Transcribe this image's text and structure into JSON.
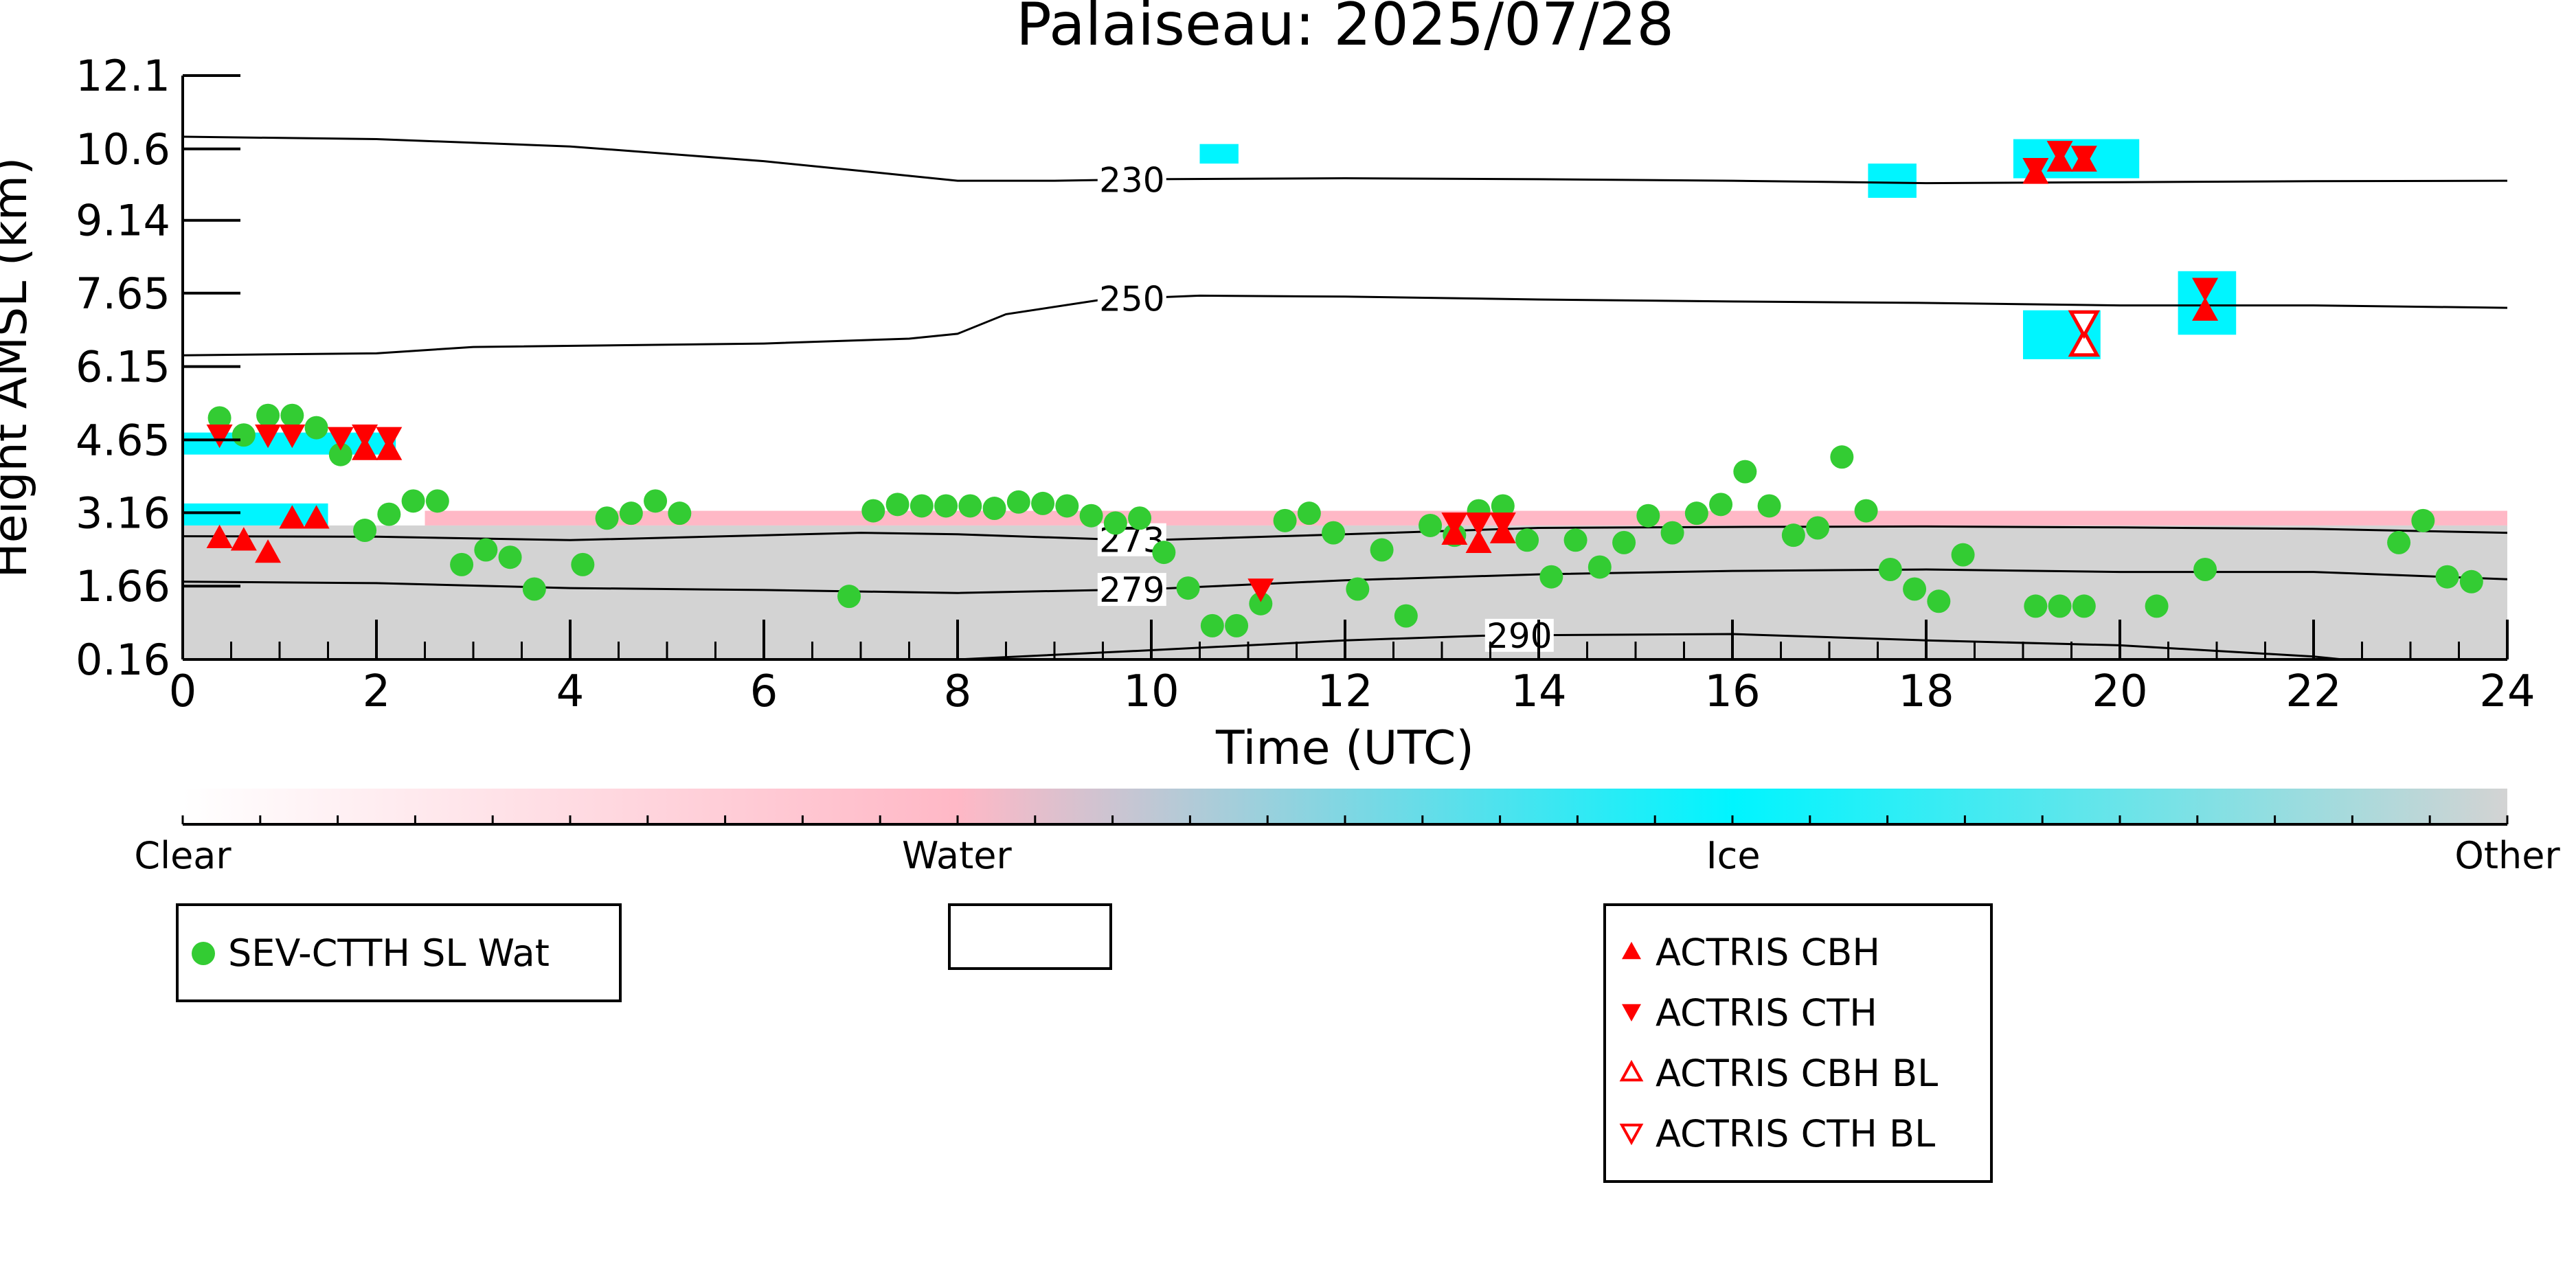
{
  "chart_data": {
    "type": "scatter",
    "title": "Palaiseau: 2025/07/28",
    "xlabel": "Time (UTC)",
    "ylabel": "Height AMSL (km)",
    "xlim": [
      0,
      24
    ],
    "ylim": [
      0.16,
      12.1
    ],
    "x_ticks": [
      "0",
      "2",
      "4",
      "6",
      "8",
      "10",
      "12",
      "14",
      "16",
      "18",
      "20",
      "22",
      "24"
    ],
    "y_ticks": [
      "0.16",
      "1.66",
      "3.16",
      "4.65",
      "6.15",
      "7.65",
      "9.14",
      "10.6",
      "12.1"
    ],
    "grid": false,
    "colors": {
      "sev": "#33cc33",
      "actris": "#ff0000",
      "ice": "#00f5ff",
      "water": "#ffb8c6",
      "other": "#d3d3d3"
    },
    "colorbar": {
      "labels": [
        "Clear",
        "Water",
        "Ice",
        "Other"
      ],
      "positions": [
        0,
        0.333,
        0.667,
        1
      ]
    },
    "legends": {
      "left": [
        "SEV-CTTH SL Wat"
      ],
      "right": [
        "ACTRIS CBH",
        "ACTRIS CTH",
        "ACTRIS CBH BL",
        "ACTRIS CTH BL"
      ]
    },
    "isotherms": [
      {
        "label": "230",
        "label_x": 9.8,
        "points": [
          [
            0,
            10.85
          ],
          [
            2,
            10.8
          ],
          [
            4,
            10.65
          ],
          [
            6,
            10.35
          ],
          [
            7,
            10.15
          ],
          [
            8,
            9.95
          ],
          [
            9,
            9.95
          ],
          [
            10,
            9.98
          ],
          [
            12,
            10.0
          ],
          [
            14,
            9.98
          ],
          [
            16,
            9.95
          ],
          [
            18,
            9.9
          ],
          [
            20,
            9.92
          ],
          [
            22,
            9.94
          ],
          [
            24,
            9.95
          ]
        ]
      },
      {
        "label": "250",
        "label_x": 9.8,
        "points": [
          [
            0,
            6.38
          ],
          [
            2,
            6.42
          ],
          [
            3,
            6.55
          ],
          [
            6,
            6.62
          ],
          [
            7.5,
            6.72
          ],
          [
            8,
            6.82
          ],
          [
            8.5,
            7.22
          ],
          [
            9.5,
            7.52
          ],
          [
            10.5,
            7.6
          ],
          [
            12,
            7.58
          ],
          [
            14,
            7.52
          ],
          [
            16,
            7.48
          ],
          [
            18,
            7.45
          ],
          [
            20,
            7.4
          ],
          [
            22,
            7.4
          ],
          [
            24,
            7.35
          ]
        ]
      },
      {
        "label": "273",
        "label_x": 9.8,
        "points": [
          [
            0,
            2.68
          ],
          [
            2,
            2.67
          ],
          [
            4,
            2.6
          ],
          [
            6,
            2.7
          ],
          [
            7,
            2.75
          ],
          [
            8,
            2.72
          ],
          [
            9.5,
            2.62
          ],
          [
            10,
            2.6
          ],
          [
            12,
            2.72
          ],
          [
            14,
            2.85
          ],
          [
            16,
            2.87
          ],
          [
            18,
            2.88
          ],
          [
            20,
            2.86
          ],
          [
            22,
            2.83
          ],
          [
            24,
            2.75
          ]
        ]
      },
      {
        "label": "279",
        "label_x": 9.8,
        "points": [
          [
            0,
            1.75
          ],
          [
            2,
            1.72
          ],
          [
            4,
            1.62
          ],
          [
            6,
            1.58
          ],
          [
            8,
            1.52
          ],
          [
            10,
            1.6
          ],
          [
            12,
            1.78
          ],
          [
            14,
            1.9
          ],
          [
            16,
            1.97
          ],
          [
            18,
            2.0
          ],
          [
            20,
            1.95
          ],
          [
            22,
            1.95
          ],
          [
            24,
            1.8
          ]
        ]
      },
      {
        "label": "290",
        "label_x": 13.8,
        "points": [
          [
            8,
            0.16
          ],
          [
            10,
            0.35
          ],
          [
            12,
            0.55
          ],
          [
            13.5,
            0.65
          ],
          [
            16,
            0.68
          ],
          [
            18,
            0.55
          ],
          [
            20,
            0.45
          ],
          [
            22,
            0.22
          ],
          [
            22.3,
            0.16
          ]
        ]
      }
    ],
    "series": [
      {
        "name": "SEV-CTTH SL Wat",
        "marker": "circle",
        "x": [
          0.38,
          0.63,
          0.88,
          1.13,
          1.38,
          1.63,
          1.88,
          2.13,
          2.38,
          2.63,
          2.88,
          3.13,
          3.38,
          3.63,
          4.13,
          4.38,
          4.63,
          4.88,
          5.13,
          6.88,
          7.13,
          7.38,
          7.63,
          7.88,
          8.13,
          8.38,
          8.63,
          8.88,
          9.13,
          9.38,
          9.63,
          9.88,
          10.13,
          10.38,
          10.63,
          10.88,
          11.13,
          11.38,
          11.63,
          11.88,
          12.13,
          12.38,
          12.63,
          12.88,
          13.13,
          13.38,
          13.63,
          13.88,
          14.13,
          14.38,
          14.63,
          14.88,
          15.13,
          15.38,
          15.63,
          15.88,
          16.13,
          16.38,
          16.63,
          16.88,
          17.13,
          17.38,
          17.63,
          17.88,
          18.13,
          18.38,
          19.13,
          19.38,
          19.63,
          20.38,
          20.88,
          22.88,
          23.13,
          23.38,
          23.63
        ],
        "y": [
          5.1,
          4.75,
          5.15,
          5.15,
          4.9,
          4.35,
          2.8,
          3.13,
          3.4,
          3.4,
          2.1,
          2.4,
          2.25,
          1.6,
          2.1,
          3.05,
          3.15,
          3.4,
          3.15,
          1.45,
          3.2,
          3.33,
          3.3,
          3.3,
          3.3,
          3.25,
          3.38,
          3.35,
          3.3,
          3.1,
          2.95,
          3.05,
          2.35,
          1.62,
          0.85,
          0.85,
          1.3,
          3.0,
          3.15,
          2.75,
          1.6,
          2.4,
          1.05,
          2.9,
          2.7,
          3.2,
          3.3,
          2.6,
          1.85,
          2.6,
          2.05,
          2.55,
          3.1,
          2.75,
          3.15,
          3.33,
          4.0,
          3.3,
          2.7,
          2.85,
          4.3,
          3.2,
          2.0,
          1.6,
          1.35,
          2.3,
          1.25,
          1.25,
          1.25,
          1.25,
          2.0,
          2.55,
          3.0,
          1.85,
          1.75
        ]
      },
      {
        "name": "ACTRIS CBH",
        "marker": "triangle-up",
        "x": [
          0.38,
          0.63,
          0.88,
          1.13,
          1.38,
          1.88,
          2.13,
          13.13,
          13.38,
          13.63,
          19.13,
          19.38,
          19.63,
          20.88
        ],
        "y": [
          2.65,
          2.6,
          2.35,
          3.05,
          3.05,
          4.45,
          4.45,
          2.72,
          2.55,
          2.75,
          10.1,
          10.35,
          10.35,
          7.3
        ]
      },
      {
        "name": "ACTRIS CTH",
        "marker": "triangle-down",
        "x": [
          0.38,
          0.88,
          1.13,
          1.63,
          1.88,
          2.13,
          11.13,
          13.13,
          13.38,
          13.63,
          19.13,
          19.38,
          19.63,
          20.88
        ],
        "y": [
          4.75,
          4.75,
          4.75,
          4.7,
          4.75,
          4.7,
          1.6,
          2.95,
          2.95,
          2.95,
          10.2,
          10.55,
          10.45,
          7.75
        ]
      },
      {
        "name": "ACTRIS CBH BL",
        "marker": "triangle-up-open",
        "x": [
          19.63
        ],
        "y": [
          6.6
        ]
      },
      {
        "name": "ACTRIS CTH BL",
        "marker": "triangle-down-open",
        "x": [
          19.63
        ],
        "y": [
          7.05
        ]
      }
    ],
    "cloud_regions": [
      {
        "class": "Other",
        "x": [
          0,
          24
        ],
        "y": [
          0.16,
          2.9
        ]
      },
      {
        "class": "Water",
        "x": [
          2.5,
          24
        ],
        "y": [
          2.9,
          3.2
        ]
      },
      {
        "class": "Ice",
        "x": [
          0,
          2.2
        ],
        "y": [
          4.35,
          4.8
        ]
      },
      {
        "class": "Ice",
        "x": [
          0,
          1.5
        ],
        "y": [
          2.9,
          3.35
        ]
      },
      {
        "class": "Ice",
        "x": [
          18.9,
          20.2
        ],
        "y": [
          10.0,
          10.8
        ]
      },
      {
        "class": "Ice",
        "x": [
          17.4,
          17.9
        ],
        "y": [
          9.6,
          10.3
        ]
      },
      {
        "class": "Ice",
        "x": [
          19.0,
          19.8
        ],
        "y": [
          6.3,
          7.3
        ]
      },
      {
        "class": "Ice",
        "x": [
          20.6,
          21.2
        ],
        "y": [
          6.8,
          8.1
        ]
      },
      {
        "class": "Ice",
        "x": [
          10.5,
          10.9
        ],
        "y": [
          10.3,
          10.7
        ]
      }
    ]
  }
}
